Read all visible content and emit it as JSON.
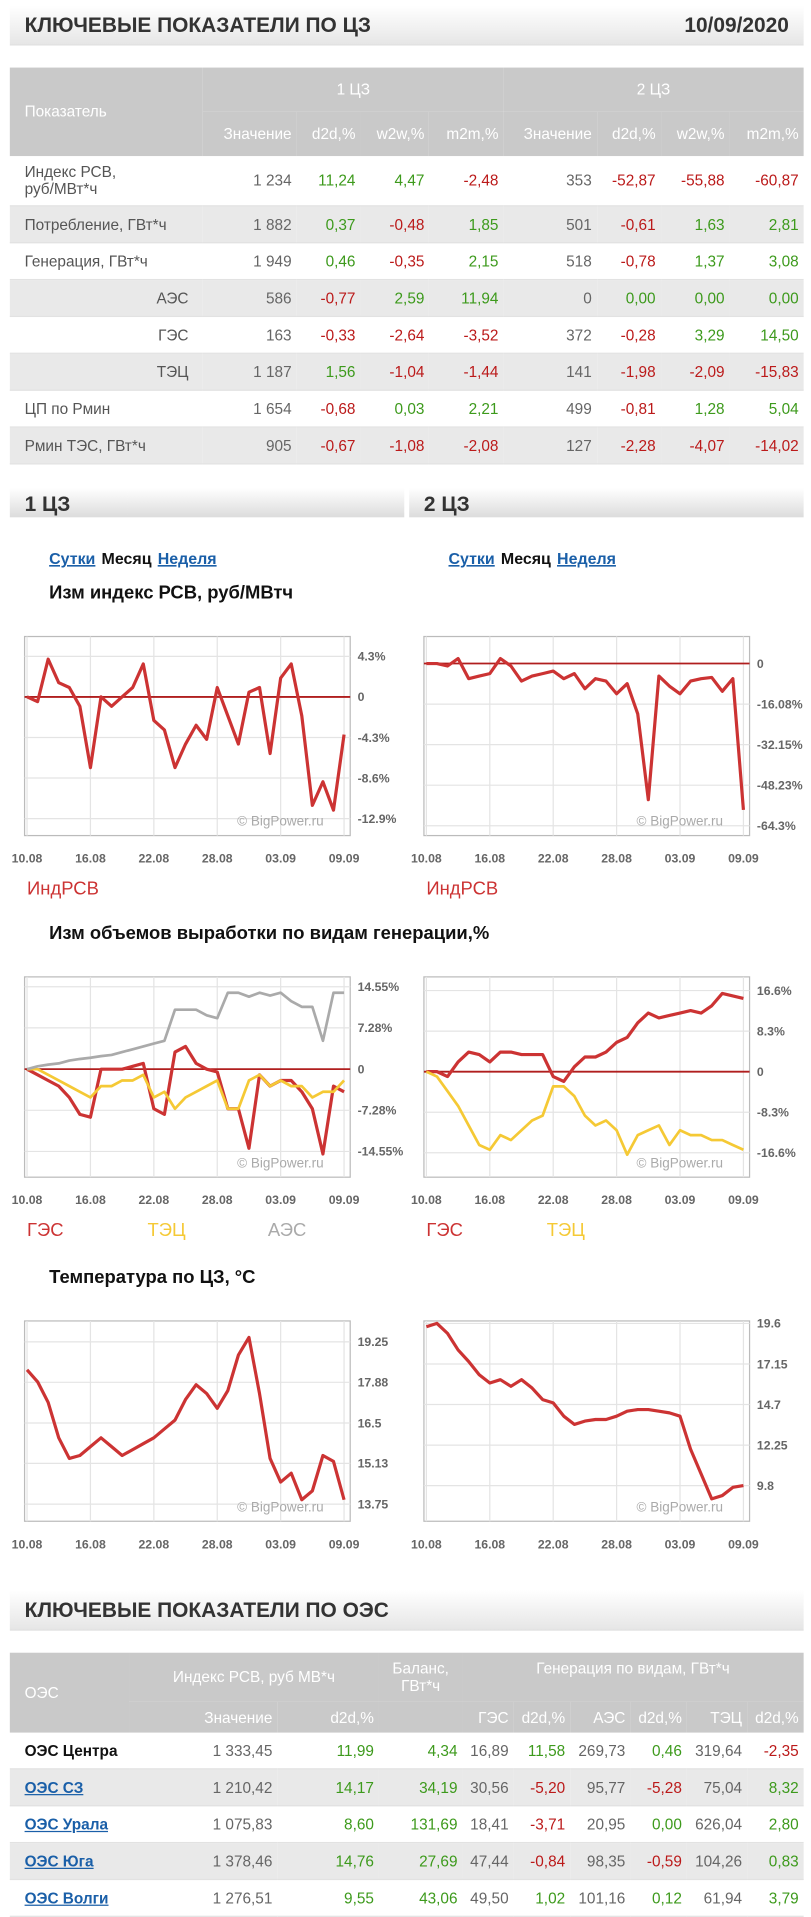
{
  "header": {
    "title": "КЛЮЧЕВЫЕ ПОКАЗАТЕЛИ ПО ЦЗ",
    "date": "10/09/2020"
  },
  "table": {
    "corner": "Показатель",
    "groups": [
      "1 ЦЗ",
      "2 ЦЗ"
    ],
    "columns": [
      "Значение",
      "d2d,%",
      "w2w,%",
      "m2m,%",
      "Значение",
      "d2d,%",
      "w2w,%",
      "m2m,%"
    ],
    "rows": [
      [
        "Индекс РСВ, руб/МВт*ч",
        "1 234",
        "11,24",
        "4,47",
        "-2,48",
        "353",
        "-52,87",
        "-55,88",
        "-60,87"
      ],
      [
        "Потребление, ГВт*ч",
        "1 882",
        "0,37",
        "-0,48",
        "1,85",
        "501",
        "-0,61",
        "1,63",
        "2,81"
      ],
      [
        "Генерация, ГВт*ч",
        "1 949",
        "0,46",
        "-0,35",
        "2,15",
        "518",
        "-0,78",
        "1,37",
        "3,08"
      ],
      [
        "АЭС",
        "586",
        "-0,77",
        "2,59",
        "11,94",
        "0",
        "0,00",
        "0,00",
        "0,00"
      ],
      [
        "ГЭС",
        "163",
        "-0,33",
        "-2,64",
        "-3,52",
        "372",
        "-0,28",
        "3,29",
        "14,50"
      ],
      [
        "ТЭЦ",
        "1 187",
        "1,56",
        "-1,04",
        "-1,44",
        "141",
        "-1,98",
        "-2,09",
        "-15,83"
      ],
      [
        "ЦП по Рмин",
        "1 654",
        "-0,68",
        "0,03",
        "2,21",
        "499",
        "-0,81",
        "1,28",
        "5,04"
      ],
      [
        "Рмин ТЭС, ГВт*ч",
        "905",
        "-0,67",
        "-1,08",
        "-2,08",
        "127",
        "-2,28",
        "-4,07",
        "-14,02"
      ]
    ]
  },
  "zones": [
    {
      "title": "1 ЦЗ",
      "tabs": [
        "Сутки",
        "Месяц",
        "Неделя"
      ]
    },
    {
      "title": "2 ЦЗ",
      "tabs": [
        "Сутки",
        "Месяц",
        "Неделя"
      ]
    }
  ],
  "chart_data": [
    {
      "type": "line",
      "title": "Изм индекс РСВ, руб/МВтч",
      "watermark": "© BigPower.ru",
      "categories": [
        "10.08",
        null,
        null,
        null,
        null,
        null,
        "16.08",
        null,
        null,
        null,
        null,
        null,
        "22.08",
        null,
        null,
        null,
        null,
        null,
        "28.08",
        null,
        null,
        null,
        null,
        null,
        "03.09",
        null,
        null,
        null,
        null,
        null,
        "09.09"
      ],
      "series": [
        {
          "name": "ИндРСВ",
          "color": "#cc3333",
          "values": [
            0,
            -0.5,
            4,
            1.5,
            1,
            -1,
            -7.5,
            0,
            -1,
            0,
            1,
            3.5,
            -2.5,
            -3.5,
            -7.5,
            -5,
            -3,
            -4.5,
            1,
            -2,
            -5,
            0.5,
            1,
            -6,
            2,
            3.5,
            -2,
            -11.5,
            -9,
            -12,
            -4
          ]
        }
      ],
      "ylim": [
        -14.7,
        6.4
      ],
      "yticks": [
        {
          "value": 4.3,
          "label": "4.3%"
        },
        0,
        {
          "value": -4.3,
          "label": "-4.3%"
        },
        {
          "value": -8.6,
          "label": "-8.6%"
        },
        {
          "value": -12.9,
          "label": "-12.9%"
        }
      ],
      "grid": true
    },
    {
      "type": "line",
      "watermark": "© BigPower.ru",
      "categories": [
        "10.08",
        null,
        null,
        null,
        null,
        null,
        "16.08",
        null,
        null,
        null,
        null,
        null,
        "22.08",
        null,
        null,
        null,
        null,
        null,
        "28.08",
        null,
        null,
        null,
        null,
        null,
        "03.09",
        null,
        null,
        null,
        null,
        null,
        "09.09"
      ],
      "series": [
        {
          "name": "ИндРСВ",
          "color": "#cc3333",
          "values": [
            0,
            0,
            -1,
            2,
            -6,
            -5,
            -4,
            2,
            -1,
            -7,
            -5,
            -4,
            -3,
            -6,
            -4,
            -10,
            -6,
            -7,
            -12,
            -8,
            -20,
            -54,
            -5,
            -9,
            -12,
            -7,
            -6,
            -5.5,
            -11,
            -6,
            -58
          ]
        }
      ],
      "ylim": [
        -68.2,
        10.7
      ],
      "yticks": [
        0,
        {
          "value": -16.08,
          "label": "-16.08%"
        },
        {
          "value": -32.15,
          "label": "-32.15%"
        },
        {
          "value": -48.23,
          "label": "-48.23%"
        },
        {
          "value": -64.3,
          "label": "-64.3%"
        }
      ],
      "grid": true
    },
    {
      "type": "line",
      "title": "Изм объемов выработки по видам генерации,%",
      "watermark": "© BigPower.ru",
      "categories": [
        "10.08",
        null,
        null,
        null,
        null,
        null,
        "16.08",
        null,
        null,
        null,
        null,
        null,
        "22.08",
        null,
        null,
        null,
        null,
        null,
        "28.08",
        null,
        null,
        null,
        null,
        null,
        "03.09",
        null,
        null,
        null,
        null,
        null,
        "09.09"
      ],
      "series": [
        {
          "name": "ГЭС",
          "color": "#cc3333",
          "values": [
            0,
            -1,
            -2,
            -3,
            -5,
            -8,
            -8.5,
            0,
            0,
            0,
            0.5,
            1,
            -7,
            -8,
            3,
            4,
            1,
            0,
            -0.5,
            -7,
            -7,
            -14,
            -1,
            -3,
            -2,
            -2,
            -4,
            -7,
            -15,
            -3,
            -4
          ]
        },
        {
          "name": "ТЭЦ",
          "color": "#f5c935",
          "values": [
            0,
            0,
            -1,
            -2,
            -3,
            -4,
            -5,
            -3,
            -3,
            -2,
            -2,
            -1,
            -5,
            -4,
            -7,
            -5,
            -4,
            -3,
            -2,
            -7,
            -7,
            -2,
            -1,
            -3,
            -2,
            -3,
            -3,
            -5,
            -4,
            -4,
            -2
          ]
        },
        {
          "name": "АЭС",
          "color": "#aaaaaa",
          "values": [
            0,
            0.5,
            0.8,
            1,
            1.5,
            1.8,
            2,
            2.3,
            2.5,
            3,
            3.5,
            4,
            4.5,
            5,
            10.5,
            10.5,
            10.5,
            9.5,
            9,
            13.5,
            13.5,
            12.8,
            13.5,
            13,
            13.5,
            12,
            11,
            11,
            5,
            13.5,
            13.5
          ]
        }
      ],
      "ylim": [
        -19.1,
        16.3
      ],
      "yticks": [
        {
          "value": 14.55,
          "label": "14.55%"
        },
        {
          "value": 7.28,
          "label": "7.28%"
        },
        0,
        {
          "value": -7.28,
          "label": "-7.28%"
        },
        {
          "value": -14.55,
          "label": "-14.55%"
        }
      ],
      "grid": true
    },
    {
      "type": "line",
      "watermark": "© BigPower.ru",
      "categories": [
        "10.08",
        null,
        null,
        null,
        null,
        null,
        "16.08",
        null,
        null,
        null,
        null,
        null,
        "22.08",
        null,
        null,
        null,
        null,
        null,
        "28.08",
        null,
        null,
        null,
        null,
        null,
        "03.09",
        null,
        null,
        null,
        null,
        null,
        "09.09"
      ],
      "series": [
        {
          "name": "ГЭС",
          "color": "#cc3333",
          "values": [
            0,
            0,
            -1,
            2,
            4,
            3.5,
            2,
            4,
            4,
            3.5,
            3.5,
            3.5,
            -1,
            -2,
            1,
            3,
            3,
            4,
            6,
            7,
            10,
            12,
            11,
            11.5,
            12,
            12.5,
            12,
            13.5,
            16,
            15.5,
            15
          ]
        },
        {
          "name": "ТЭЦ",
          "color": "#f5c935",
          "values": [
            0,
            -1,
            -4,
            -7,
            -11,
            -15,
            -16,
            -13,
            -14,
            -12,
            -10,
            -9,
            -3,
            -3,
            -5,
            -9,
            -11,
            -10,
            -12,
            -17,
            -13,
            -12,
            -11,
            -15,
            -12,
            -13,
            -13,
            -14,
            -14,
            -15,
            -16
          ]
        }
      ],
      "ylim": [
        -21.6,
        19.4
      ],
      "yticks": [
        {
          "value": 16.6,
          "label": "16.6%"
        },
        {
          "value": 8.3,
          "label": "8.3%"
        },
        0,
        {
          "value": -8.3,
          "label": "-8.3%"
        },
        {
          "value": -16.6,
          "label": "-16.6%"
        }
      ],
      "grid": true
    },
    {
      "type": "line",
      "title": "Температура по ЦЗ, °С",
      "watermark": "© BigPower.ru",
      "categories": [
        "10.08",
        null,
        null,
        null,
        null,
        null,
        "16.08",
        null,
        null,
        null,
        null,
        null,
        "22.08",
        null,
        null,
        null,
        null,
        null,
        "28.08",
        null,
        null,
        null,
        null,
        null,
        "03.09",
        null,
        null,
        null,
        null,
        null,
        "09.09"
      ],
      "series": [
        {
          "color": "#cc3333",
          "values": [
            18.3,
            17.9,
            17.2,
            16.0,
            15.3,
            15.4,
            15.7,
            16.0,
            15.7,
            15.4,
            15.6,
            15.8,
            16.0,
            16.3,
            16.6,
            17.3,
            17.8,
            17.5,
            17.0,
            17.6,
            18.8,
            19.4,
            17.5,
            15.3,
            14.5,
            14.8,
            13.9,
            14.2,
            15.4,
            15.2,
            13.9
          ]
        }
      ],
      "ylim": [
        13.17,
        19.96
      ],
      "yticks": [
        19.25,
        17.88,
        16.5,
        15.13,
        13.75
      ],
      "grid": true
    },
    {
      "type": "line",
      "watermark": "© BigPower.ru",
      "categories": [
        "10.08",
        null,
        null,
        null,
        null,
        null,
        "16.08",
        null,
        null,
        null,
        null,
        null,
        "22.08",
        null,
        null,
        null,
        null,
        null,
        "28.08",
        null,
        null,
        null,
        null,
        null,
        "03.09",
        null,
        null,
        null,
        null,
        null,
        "09.09"
      ],
      "series": [
        {
          "color": "#cc3333",
          "values": [
            19.4,
            19.6,
            19.0,
            18.0,
            17.3,
            16.5,
            16.0,
            16.2,
            15.8,
            16.2,
            15.7,
            15.0,
            14.8,
            14.0,
            13.5,
            13.7,
            13.8,
            13.8,
            14.0,
            14.3,
            14.4,
            14.4,
            14.3,
            14.2,
            14.0,
            12.0,
            10.5,
            9.0,
            9.2,
            9.7,
            9.8
          ]
        }
      ],
      "ylim": [
        7.65,
        19.75
      ],
      "yticks": [
        19.6,
        17.15,
        14.7,
        12.25,
        9.8
      ],
      "grid": true
    }
  ],
  "oes": {
    "title": "КЛЮЧЕВЫЕ ПОКАЗАТЕЛИ ПО ОЭС",
    "header": {
      "name": "ОЭС",
      "price": "Индекс РСВ, руб МВ*ч",
      "balance": "Баланс, ГВт*ч",
      "generation": "Генерация по видам, ГВт*ч"
    },
    "columns": [
      "Значение",
      "d2d,%",
      "ГЭС",
      "d2d,%",
      "АЭС",
      "d2d,%",
      "ТЭЦ",
      "d2d,%"
    ],
    "rows": [
      [
        "ОЭС Центра",
        "1 333,45",
        "11,99",
        "4,34",
        "16,89",
        "11,58",
        "269,73",
        "0,46",
        "319,64",
        "-2,35"
      ],
      [
        "ОЭС СЗ",
        "1 210,42",
        "14,17",
        "34,19",
        "30,56",
        "-5,20",
        "95,77",
        "-5,28",
        "75,04",
        "8,32"
      ],
      [
        "ОЭС Урала",
        "1 075,83",
        "8,60",
        "131,69",
        "18,41",
        "-3,71",
        "20,95",
        "0,00",
        "626,04",
        "2,80"
      ],
      [
        "ОЭС Юга",
        "1 378,46",
        "14,76",
        "27,69",
        "47,44",
        "-0,84",
        "98,35",
        "-0,59",
        "104,26",
        "0,83"
      ],
      [
        "ОЭС Волги",
        "1 276,51",
        "9,55",
        "43,06",
        "49,50",
        "1,02",
        "101,16",
        "0,12",
        "61,94",
        "3,79"
      ]
    ]
  }
}
